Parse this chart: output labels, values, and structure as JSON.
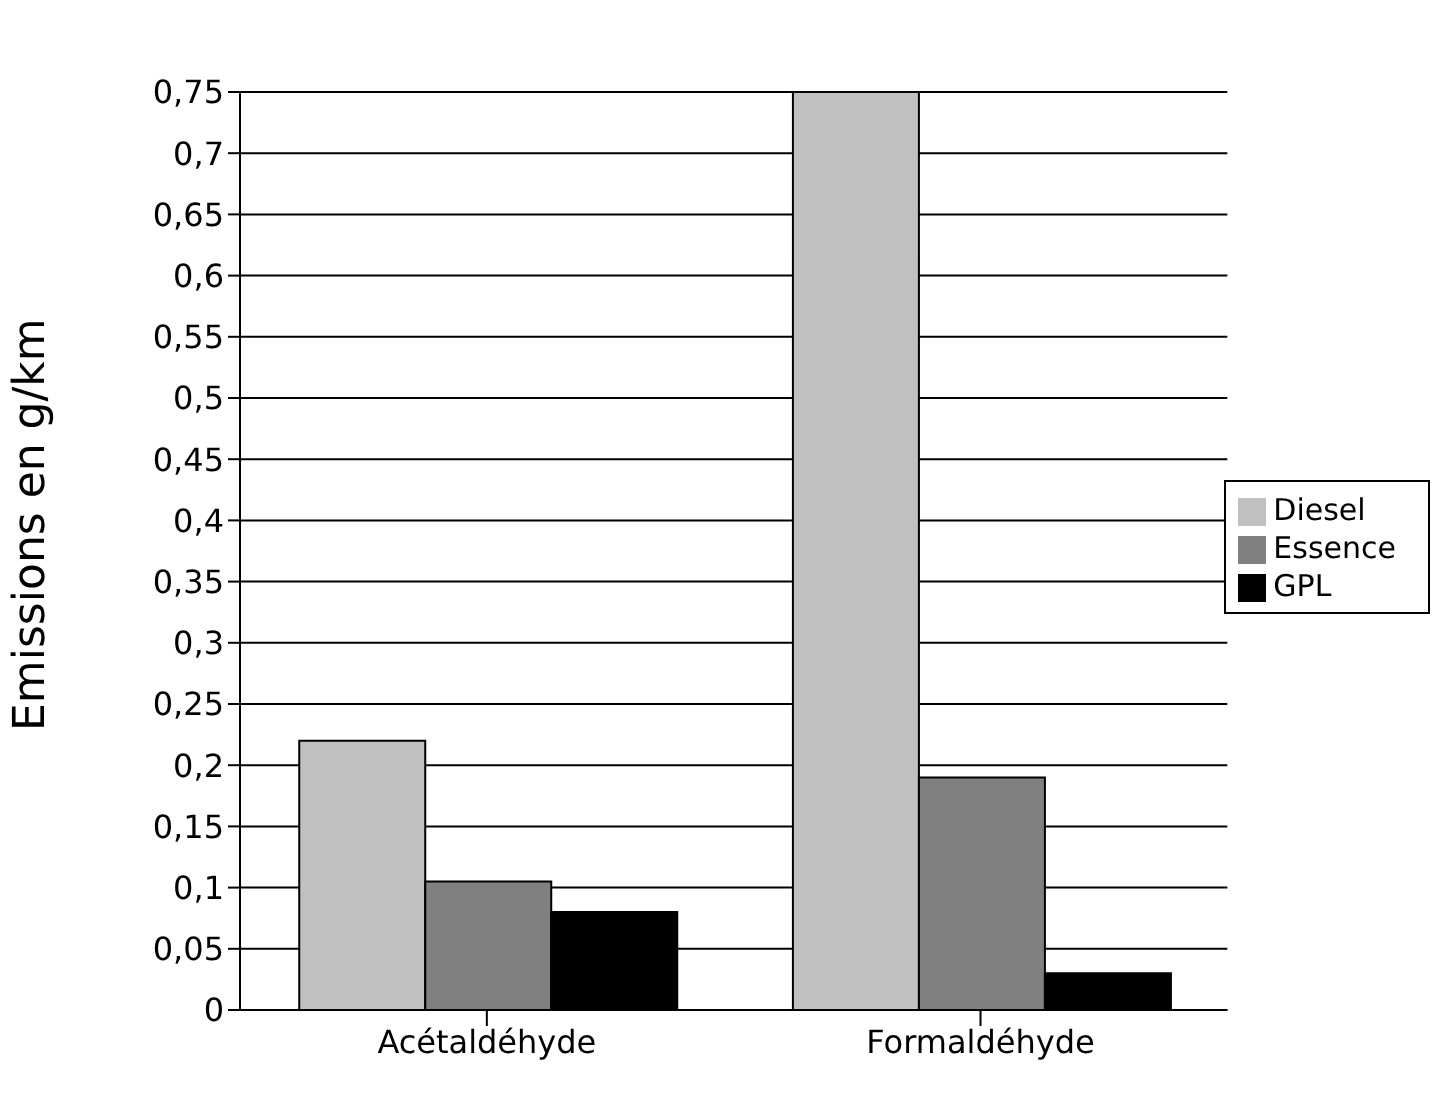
{
  "chart_data": {
    "type": "bar",
    "ylabel": "Emissions en g/km",
    "categories": [
      "Acétaldéhyde",
      "Formaldéhyde"
    ],
    "series": [
      {
        "name": "Diesel",
        "color": "#c0c0c0",
        "values": [
          0.22,
          0.75
        ]
      },
      {
        "name": "Essence",
        "color": "#808080",
        "values": [
          0.105,
          0.19
        ]
      },
      {
        "name": "GPL",
        "color": "#000000",
        "values": [
          0.08,
          0.03
        ]
      }
    ],
    "ylim": [
      0,
      0.75
    ],
    "yticks": [
      {
        "value": 0,
        "label": "0"
      },
      {
        "value": 0.05,
        "label": "0,05"
      },
      {
        "value": 0.1,
        "label": "0,1"
      },
      {
        "value": 0.15,
        "label": "0,15"
      },
      {
        "value": 0.2,
        "label": "0,2"
      },
      {
        "value": 0.25,
        "label": "0,25"
      },
      {
        "value": 0.3,
        "label": "0,3"
      },
      {
        "value": 0.35,
        "label": "0,35"
      },
      {
        "value": 0.4,
        "label": "0,4"
      },
      {
        "value": 0.45,
        "label": "0,45"
      },
      {
        "value": 0.5,
        "label": "0,5"
      },
      {
        "value": 0.55,
        "label": "0,55"
      },
      {
        "value": 0.6,
        "label": "0,6"
      },
      {
        "value": 0.65,
        "label": "0,65"
      },
      {
        "value": 0.7,
        "label": "0,7"
      },
      {
        "value": 0.75,
        "label": "0,75"
      }
    ],
    "grid": "y",
    "legend": "right"
  }
}
